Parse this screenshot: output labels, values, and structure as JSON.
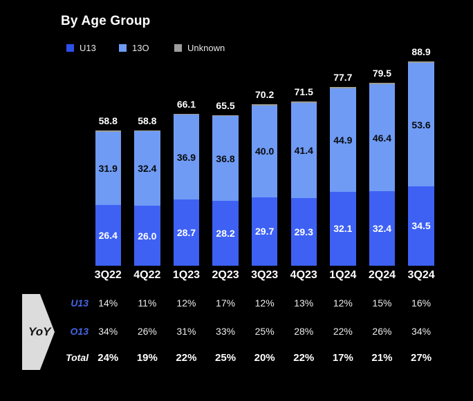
{
  "title": "By Age Group",
  "legend": [
    {
      "label": "U13",
      "color": "#2c50e9"
    },
    {
      "label": "13O",
      "color": "#6f9bf5"
    },
    {
      "label": "Unknown",
      "color": "#9d9d9d"
    }
  ],
  "chart_data": {
    "type": "bar",
    "stacked": true,
    "title": "By Age Group",
    "xlabel": "",
    "ylabel": "",
    "ylim": [
      0,
      90
    ],
    "grid": false,
    "legend_position": "top-left",
    "categories": [
      "3Q22",
      "4Q22",
      "1Q23",
      "2Q23",
      "3Q23",
      "4Q23",
      "1Q24",
      "2Q24",
      "3Q24"
    ],
    "series": [
      {
        "name": "U13",
        "color": "#3e61f4",
        "label_color": "#ffffff",
        "values": [
          26.4,
          26.0,
          28.7,
          28.2,
          29.7,
          29.3,
          32.1,
          32.4,
          34.5
        ],
        "show_labels": true
      },
      {
        "name": "13O",
        "color": "#6f9bf5",
        "label_color": "#0a0a0a",
        "values": [
          31.9,
          32.4,
          36.9,
          36.8,
          40.0,
          41.4,
          44.9,
          46.4,
          53.6
        ],
        "show_labels": true
      },
      {
        "name": "Unknown",
        "color": "#9d9d92",
        "label_color": "#ffffff",
        "values": [
          0.5,
          0.4,
          0.5,
          0.5,
          0.5,
          0.8,
          0.7,
          0.7,
          0.8
        ],
        "show_labels": false
      }
    ],
    "totals": [
      58.8,
      58.8,
      66.1,
      65.5,
      70.2,
      71.5,
      77.7,
      79.5,
      88.9
    ]
  },
  "yoy": {
    "arrow_label": "YoY",
    "rows": [
      {
        "label": "U13",
        "style": "blue",
        "bold": false,
        "values": [
          "14%",
          "11%",
          "12%",
          "17%",
          "12%",
          "13%",
          "12%",
          "15%",
          "16%"
        ]
      },
      {
        "label": "O13",
        "style": "blue",
        "bold": false,
        "values": [
          "34%",
          "26%",
          "31%",
          "33%",
          "25%",
          "28%",
          "22%",
          "26%",
          "34%"
        ]
      },
      {
        "label": "Total",
        "style": "white",
        "bold": true,
        "values": [
          "24%",
          "19%",
          "22%",
          "25%",
          "20%",
          "22%",
          "17%",
          "21%",
          "27%"
        ]
      }
    ]
  }
}
